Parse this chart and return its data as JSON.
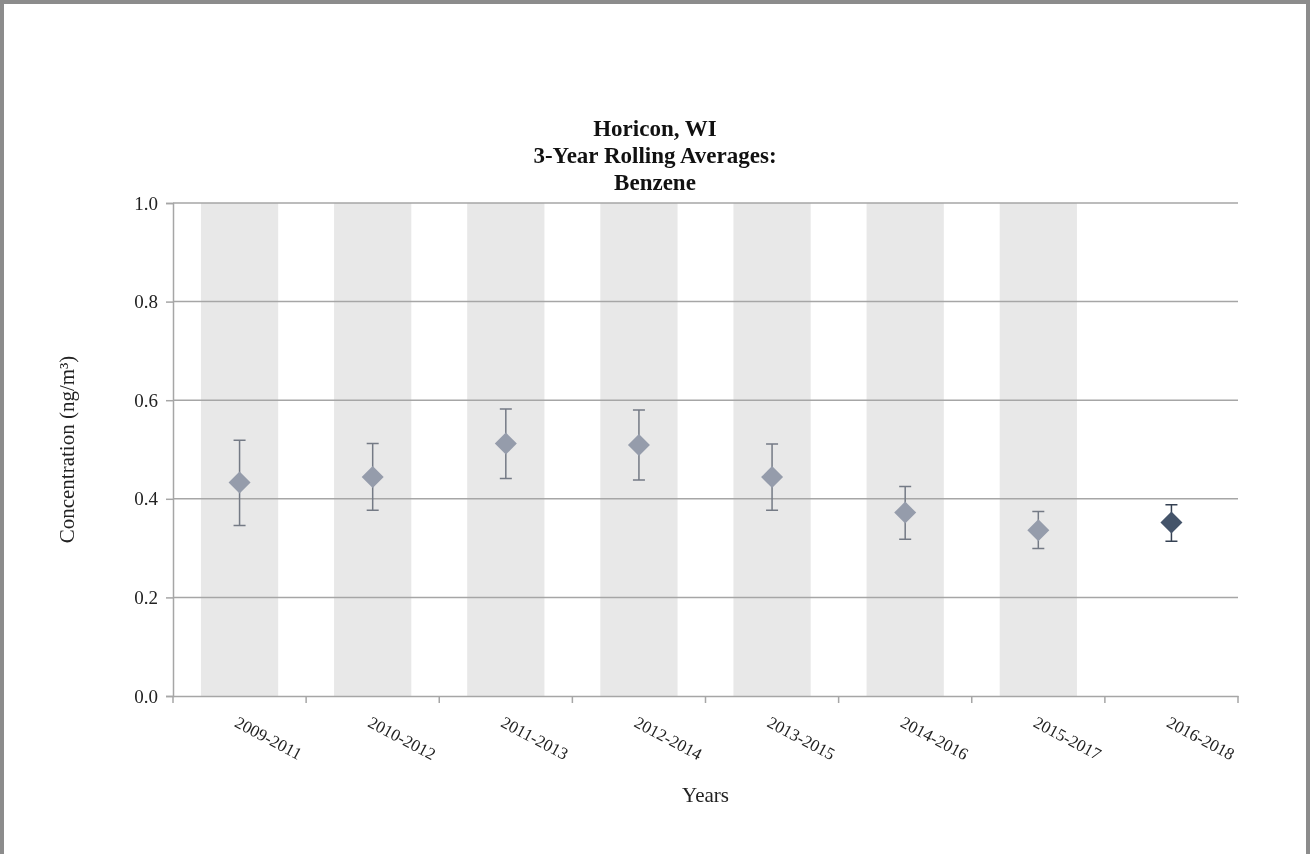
{
  "chart_data": {
    "type": "scatter",
    "title": "Horicon, WI\n3-Year Rolling Averages:\nBenzene",
    "xlabel": "Years",
    "ylabel": "Concentration (ng/m³)",
    "categories": [
      "2009-2011",
      "2010-2012",
      "2011-2013",
      "2012-2014",
      "2013-2015",
      "2014-2016",
      "2015-2017",
      "2016-2018"
    ],
    "values": [
      0.433,
      0.444,
      0.512,
      0.509,
      0.444,
      0.372,
      0.336,
      0.352
    ],
    "errors": [
      [
        0.346,
        0.519
      ],
      [
        0.377,
        0.512
      ],
      [
        0.441,
        0.582
      ],
      [
        0.438,
        0.58
      ],
      [
        0.377,
        0.511
      ],
      [
        0.318,
        0.425
      ],
      [
        0.299,
        0.374
      ],
      [
        0.314,
        0.388
      ]
    ],
    "colors": [
      "#959cab",
      "#959cab",
      "#959cab",
      "#959cab",
      "#959cab",
      "#959cab",
      "#959cab",
      "#44546a"
    ],
    "marker": "diamond",
    "ylim": [
      0,
      1
    ],
    "yticks": [
      {
        "value": 0,
        "label": "0.0"
      },
      {
        "value": 0.2,
        "label": "0.2"
      },
      {
        "value": 0.4,
        "label": "0.4"
      },
      {
        "value": 0.6,
        "label": "0.6"
      },
      {
        "value": 0.8,
        "label": "0.8"
      },
      {
        "value": 1,
        "label": "1.0"
      }
    ],
    "grid": "y",
    "bands": [
      {
        "axis": "x",
        "from": "2009-2011",
        "to": "2009-2011",
        "color": "#e8e8e8"
      },
      {
        "axis": "x",
        "from": "2010-2012",
        "to": "2010-2012",
        "color": "#e8e8e8"
      },
      {
        "axis": "x",
        "from": "2011-2013",
        "to": "2011-2013",
        "color": "#e8e8e8"
      },
      {
        "axis": "x",
        "from": "2012-2014",
        "to": "2012-2014",
        "color": "#e8e8e8"
      },
      {
        "axis": "x",
        "from": "2013-2015",
        "to": "2013-2015",
        "color": "#e8e8e8"
      },
      {
        "axis": "x",
        "from": "2014-2016",
        "to": "2014-2016",
        "color": "#e8e8e8"
      },
      {
        "axis": "x",
        "from": "2015-2017",
        "to": "2015-2017",
        "color": "#e8e8e8"
      }
    ]
  }
}
